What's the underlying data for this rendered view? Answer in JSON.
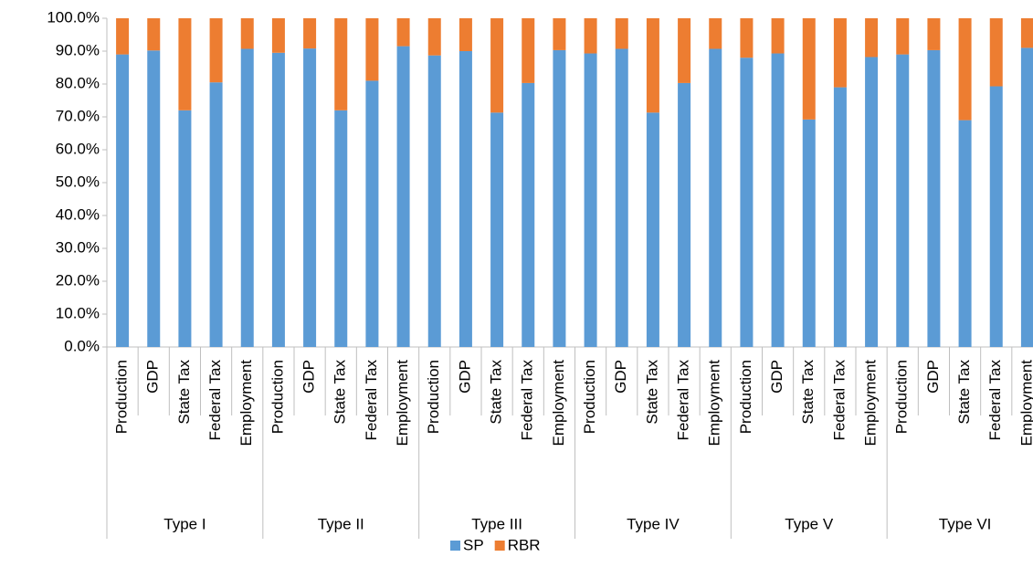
{
  "chart_data": {
    "type": "stacked_bar",
    "groups": [
      "Type I",
      "Type II",
      "Type III",
      "Type IV",
      "Type V",
      "Type VI"
    ],
    "categories": [
      "Production",
      "GDP",
      "State Tax",
      "Federal Tax",
      "Employment",
      "Production",
      "GDP",
      "State Tax",
      "Federal Tax",
      "Employment",
      "Production",
      "GDP",
      "State Tax",
      "Federal Tax",
      "Employment",
      "Production",
      "GDP",
      "State Tax",
      "Federal Tax",
      "Employment",
      "Production",
      "GDP",
      "State Tax",
      "Federal Tax",
      "Employment",
      "Production",
      "GDP",
      "State Tax",
      "Federal Tax",
      "Employment"
    ],
    "series": [
      {
        "name": "SP",
        "color": "#5b9bd5",
        "values": [
          89,
          90.2,
          72,
          80.5,
          90.7,
          89.5,
          90.8,
          72,
          81,
          91.5,
          88.7,
          90,
          71.3,
          80.3,
          90.3,
          89.3,
          90.7,
          71.3,
          80.3,
          90.7,
          88,
          89.3,
          69.2,
          79,
          88.2,
          89,
          90.3,
          69,
          79.3,
          91
        ]
      },
      {
        "name": "RBR",
        "color": "#ed7d31",
        "values": [
          11,
          9.8,
          28,
          19.5,
          9.3,
          10.5,
          9.2,
          28,
          19,
          8.5,
          11.3,
          10,
          28.7,
          19.7,
          9.7,
          10.7,
          9.3,
          28.7,
          19.7,
          9.3,
          12,
          10.7,
          30.8,
          21,
          11.8,
          11,
          9.7,
          31,
          20.7,
          9
        ]
      }
    ],
    "ylim": [
      0,
      100
    ],
    "yticks": [
      {
        "value": 0,
        "label": "0.0%"
      },
      {
        "value": 10,
        "label": "10.0%"
      },
      {
        "value": 20,
        "label": "20.0%"
      },
      {
        "value": 30,
        "label": "30.0%"
      },
      {
        "value": 40,
        "label": "40.0%"
      },
      {
        "value": 50,
        "label": "50.0%"
      },
      {
        "value": 60,
        "label": "60.0%"
      },
      {
        "value": 70,
        "label": "70.0%"
      },
      {
        "value": 80,
        "label": "80.0%"
      },
      {
        "value": 90,
        "label": "90.0%"
      },
      {
        "value": 100,
        "label": "100.0%"
      }
    ],
    "legend": "bottom"
  }
}
